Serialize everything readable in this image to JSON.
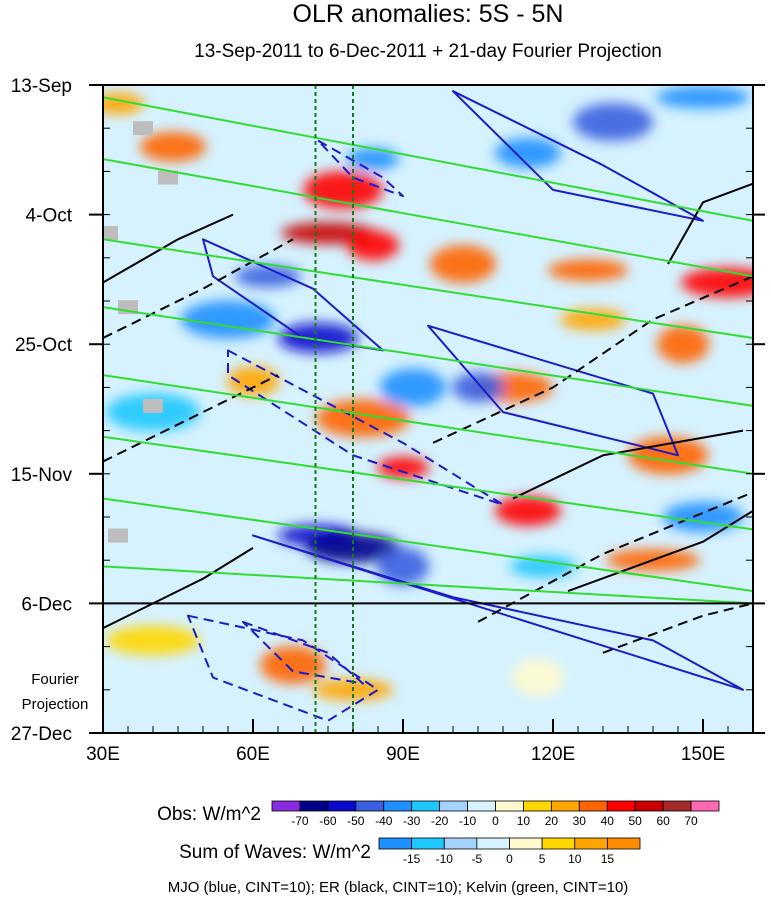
{
  "chart_data": {
    "type": "heatmap",
    "title": "OLR anomalies: 5S - 5N",
    "subtitle": "13-Sep-2011 to 6-Dec-2011 + 21-day Fourier Projection",
    "xaxis": {
      "ticks": [
        "30E",
        "60E",
        "90E",
        "120E",
        "150E"
      ],
      "values": [
        30,
        60,
        90,
        120,
        150
      ],
      "range": [
        30,
        160
      ]
    },
    "yaxis": {
      "ticks": [
        "13-Sep",
        "4-Oct",
        "25-Oct",
        "15-Nov",
        "6-Dec",
        "27-Dec"
      ],
      "dates": [
        "2011-09-13",
        "2011-10-04",
        "2011-10-25",
        "2011-11-15",
        "2011-12-06",
        "2011-12-27"
      ],
      "range": [
        "2011-09-13",
        "2011-12-27"
      ],
      "inverted": true
    },
    "projection_label": [
      "Fourier",
      "Projection"
    ],
    "projection_start": "2011-12-06",
    "reference_lines_lon": [
      72.5,
      80
    ],
    "obs_colorbar": {
      "label": "Obs: W/m^2",
      "levels": [
        "-70",
        "-60",
        "-50",
        "-40",
        "-30",
        "-20",
        "-10",
        "0",
        "10",
        "20",
        "30",
        "40",
        "50",
        "60",
        "70"
      ],
      "colors": [
        "#8a2be2",
        "#00008b",
        "#0a0acd",
        "#3a5fe0",
        "#1e90ff",
        "#1ec8ff",
        "#a4d3ff",
        "#d6f2ff",
        "#fffacd",
        "#ffd700",
        "#ffa500",
        "#ff6400",
        "#ff0000",
        "#c80000",
        "#a52a2a",
        "#ff69b4"
      ]
    },
    "waves_colorbar": {
      "label": "Sum of Waves: W/m^2",
      "levels": [
        "-15",
        "-10",
        "-5",
        "0",
        "5",
        "10",
        "15"
      ],
      "colors": [
        "#1e90ff",
        "#1ec8ff",
        "#a4d3ff",
        "#d6f2ff",
        "#fffacd",
        "#ffd700",
        "#ffa500",
        "#ff8c00"
      ]
    },
    "contour_note": "MJO (blue, CINT=10); ER (black, CINT=10); Kelvin (green, CINT=10)",
    "series": [
      {
        "name": "MJO",
        "color": "#1c1cc8",
        "cint": 10
      },
      {
        "name": "ER",
        "color": "#000000",
        "cint": 10
      },
      {
        "name": "Kelvin",
        "color": "#32dc32",
        "cint": 10
      }
    ],
    "anomaly_blobs": [
      {
        "lon": 33,
        "date": "2011-09-16",
        "value": 20
      },
      {
        "lon": 44,
        "date": "2011-09-23",
        "value": 30
      },
      {
        "lon": 78,
        "date": "2011-09-30",
        "value": 40
      },
      {
        "lon": 75,
        "date": "2011-10-07",
        "value": 50
      },
      {
        "lon": 84,
        "date": "2011-10-09",
        "value": 40
      },
      {
        "lon": 102,
        "date": "2011-10-12",
        "value": 30
      },
      {
        "lon": 127,
        "date": "2011-10-13",
        "value": 30
      },
      {
        "lon": 155,
        "date": "2011-10-15",
        "value": 40
      },
      {
        "lon": 146,
        "date": "2011-10-25",
        "value": 30
      },
      {
        "lon": 128,
        "date": "2011-10-21",
        "value": 20
      },
      {
        "lon": 112,
        "date": "2011-11-01",
        "value": 30
      },
      {
        "lon": 82,
        "date": "2011-11-06",
        "value": 30
      },
      {
        "lon": 90,
        "date": "2011-11-14",
        "value": 40
      },
      {
        "lon": 115,
        "date": "2011-11-21",
        "value": 40
      },
      {
        "lon": 143,
        "date": "2011-11-12",
        "value": 30
      },
      {
        "lon": 140,
        "date": "2011-11-29",
        "value": 30
      },
      {
        "lon": 60,
        "date": "2011-10-31",
        "value": 20
      },
      {
        "lon": 68,
        "date": "2011-12-16",
        "value": 30
      },
      {
        "lon": 80,
        "date": "2011-12-20",
        "value": 20
      },
      {
        "lon": 40,
        "date": "2011-12-12",
        "value": 10
      },
      {
        "lon": 117,
        "date": "2011-12-18",
        "value": 5
      },
      {
        "lon": 63,
        "date": "2011-10-14",
        "value": -50
      },
      {
        "lon": 73,
        "date": "2011-10-24",
        "value": -60
      },
      {
        "lon": 55,
        "date": "2011-10-21",
        "value": -40
      },
      {
        "lon": 84,
        "date": "2011-09-25",
        "value": -40
      },
      {
        "lon": 115,
        "date": "2011-09-24",
        "value": -40
      },
      {
        "lon": 132,
        "date": "2011-09-19",
        "value": -50
      },
      {
        "lon": 150,
        "date": "2011-09-15",
        "value": -40
      },
      {
        "lon": 105,
        "date": "2011-11-01",
        "value": -50
      },
      {
        "lon": 92,
        "date": "2011-11-01",
        "value": -40
      },
      {
        "lon": 73,
        "date": "2011-11-25",
        "value": -60
      },
      {
        "lon": 80,
        "date": "2011-11-27",
        "value": -70
      },
      {
        "lon": 90,
        "date": "2011-11-30",
        "value": -50
      },
      {
        "lon": 118,
        "date": "2011-11-30",
        "value": -30
      },
      {
        "lon": 150,
        "date": "2011-11-22",
        "value": -40
      },
      {
        "lon": 40,
        "date": "2011-11-05",
        "value": -30
      },
      {
        "lon": 45,
        "date": "2011-12-26",
        "value": -5
      }
    ],
    "mjo_contours": [
      {
        "points": [
          [
            73,
            "2011-09-22"
          ],
          [
            86,
            "2011-09-28"
          ],
          [
            90,
            "2011-10-01"
          ],
          [
            80,
            "2011-09-28"
          ]
        ],
        "dashed": true
      },
      {
        "points": [
          [
            50,
            "2011-10-08"
          ],
          [
            72,
            "2011-10-16"
          ],
          [
            86,
            "2011-10-26"
          ],
          [
            70,
            "2011-10-24"
          ],
          [
            52,
            "2011-10-14"
          ]
        ],
        "dashed": false
      },
      {
        "points": [
          [
            100,
            "2011-09-14"
          ],
          [
            130,
            "2011-09-26"
          ],
          [
            150,
            "2011-10-05"
          ],
          [
            120,
            "2011-09-30"
          ]
        ],
        "dashed": false
      },
      {
        "points": [
          [
            55,
            "2011-10-26"
          ],
          [
            90,
            "2011-11-10"
          ],
          [
            110,
            "2011-11-20"
          ],
          [
            80,
            "2011-11-12"
          ],
          [
            55,
            "2011-10-30"
          ]
        ],
        "dashed": true
      },
      {
        "points": [
          [
            95,
            "2011-10-22"
          ],
          [
            140,
            "2011-11-02"
          ],
          [
            145,
            "2011-11-12"
          ],
          [
            110,
            "2011-11-05"
          ]
        ],
        "dashed": false
      },
      {
        "points": [
          [
            60,
            "2011-11-25"
          ],
          [
            100,
            "2011-12-05"
          ],
          [
            140,
            "2011-12-12"
          ],
          [
            158,
            "2011-12-20"
          ]
        ],
        "dashed": false
      },
      {
        "points": [
          [
            47,
            "2011-12-08"
          ],
          [
            70,
            "2011-12-12"
          ],
          [
            85,
            "2011-12-20"
          ],
          [
            75,
            "2011-12-25"
          ],
          [
            52,
            "2011-12-18"
          ]
        ],
        "dashed": true
      },
      {
        "points": [
          [
            58,
            "2011-12-09"
          ],
          [
            75,
            "2011-12-14"
          ],
          [
            82,
            "2011-12-19"
          ],
          [
            68,
            "2011-12-17"
          ]
        ],
        "dashed": true
      }
    ],
    "er_contours": [
      {
        "points": [
          [
            30,
            "2011-10-15"
          ],
          [
            45,
            "2011-10-08"
          ],
          [
            56,
            "2011-10-04"
          ]
        ],
        "dashed": false
      },
      {
        "points": [
          [
            30,
            "2011-10-24"
          ],
          [
            50,
            "2011-10-16"
          ],
          [
            68,
            "2011-10-08"
          ]
        ],
        "dashed": true
      },
      {
        "points": [
          [
            30,
            "2011-11-13"
          ],
          [
            50,
            "2011-11-05"
          ],
          [
            65,
            "2011-10-30"
          ]
        ],
        "dashed": true
      },
      {
        "points": [
          [
            30,
            "2011-12-10"
          ],
          [
            50,
            "2011-12-02"
          ],
          [
            60,
            "2011-11-27"
          ]
        ],
        "dashed": false
      },
      {
        "points": [
          [
            96,
            "2011-11-10"
          ],
          [
            120,
            "2011-11-01"
          ],
          [
            140,
            "2011-10-21"
          ],
          [
            160,
            "2011-10-14"
          ]
        ],
        "dashed": true
      },
      {
        "points": [
          [
            112,
            "2011-11-19"
          ],
          [
            130,
            "2011-11-12"
          ],
          [
            158,
            "2011-11-08"
          ]
        ],
        "dashed": false
      },
      {
        "points": [
          [
            105,
            "2011-12-09"
          ],
          [
            130,
            "2011-11-28"
          ],
          [
            160,
            "2011-11-18"
          ]
        ],
        "dashed": true
      },
      {
        "points": [
          [
            143,
            "2011-10-12"
          ],
          [
            150,
            "2011-10-02"
          ],
          [
            160,
            "2011-09-29"
          ]
        ],
        "dashed": false
      },
      {
        "points": [
          [
            123,
            "2011-12-04"
          ],
          [
            150,
            "2011-11-26"
          ],
          [
            160,
            "2011-11-21"
          ]
        ],
        "dashed": false
      },
      {
        "points": [
          [
            130,
            "2011-12-14"
          ],
          [
            150,
            "2011-12-08"
          ],
          [
            160,
            "2011-12-06"
          ]
        ],
        "dashed": true
      }
    ],
    "kelvin_lines": [
      {
        "from": [
          30,
          "2011-09-15"
        ],
        "to": [
          160,
          "2011-10-05"
        ]
      },
      {
        "from": [
          30,
          "2011-09-25"
        ],
        "to": [
          160,
          "2011-10-14"
        ]
      },
      {
        "from": [
          30,
          "2011-10-08"
        ],
        "to": [
          160,
          "2011-10-24"
        ]
      },
      {
        "from": [
          30,
          "2011-10-19"
        ],
        "to": [
          160,
          "2011-11-04"
        ]
      },
      {
        "from": [
          30,
          "2011-10-30"
        ],
        "to": [
          160,
          "2011-11-15"
        ]
      },
      {
        "from": [
          30,
          "2011-11-09"
        ],
        "to": [
          160,
          "2011-11-24"
        ]
      },
      {
        "from": [
          30,
          "2011-11-19"
        ],
        "to": [
          160,
          "2011-12-04"
        ]
      },
      {
        "from": [
          30,
          "2011-11-30"
        ],
        "to": [
          160,
          "2011-12-06"
        ]
      }
    ],
    "missing_patches": [
      {
        "lon": 38,
        "date": "2011-09-20"
      },
      {
        "lon": 43,
        "date": "2011-09-28"
      },
      {
        "lon": 31,
        "date": "2011-10-07"
      },
      {
        "lon": 35,
        "date": "2011-10-19"
      },
      {
        "lon": 40,
        "date": "2011-11-04"
      },
      {
        "lon": 33,
        "date": "2011-11-25"
      }
    ]
  }
}
